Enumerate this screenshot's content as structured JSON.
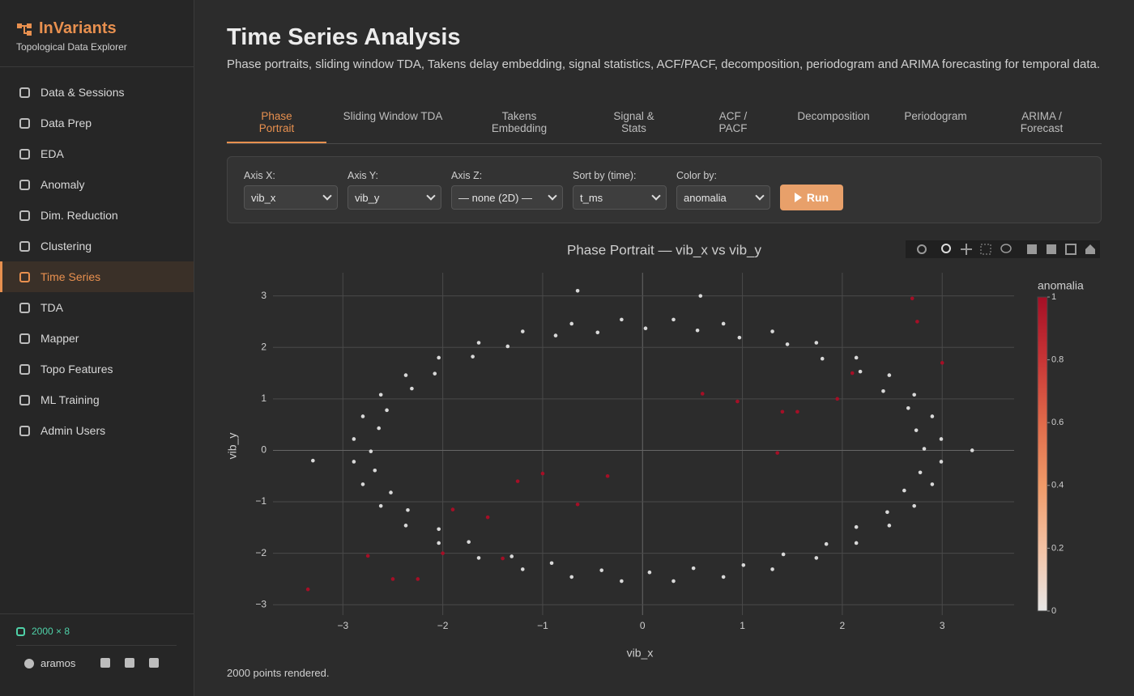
{
  "sidebar": {
    "brand": "InVariants",
    "tagline": "Topological Data Explorer",
    "nav": [
      "Data & Sessions",
      "Data Prep",
      "EDA",
      "Anomaly",
      "Dim. Reduction",
      "Clustering",
      "Time Series",
      "TDA",
      "Mapper",
      "Topo Features",
      "ML Training",
      "Admin Users"
    ],
    "dataset": "2000 × 8",
    "user": "aramos"
  },
  "header": {
    "title": "Time Series Analysis",
    "description": "Phase portraits, sliding window TDA, Takens delay embedding, signal statistics, ACF/PACF, decomposition, periodogram and ARIMA forecasting for temporal data."
  },
  "tabs": [
    "Phase Portrait",
    "Sliding Window TDA",
    "Takens Embedding",
    "Signal & Stats",
    "ACF / PACF",
    "Decomposition",
    "Periodogram",
    "ARIMA / Forecast"
  ],
  "controls": [
    {
      "label": "Axis X:",
      "value": "vib_x"
    },
    {
      "label": "Axis Y:",
      "value": "vib_y"
    },
    {
      "label": "Axis Z:",
      "value": "— none (2D) —"
    },
    {
      "label": "Sort by (time):",
      "value": "t_ms"
    },
    {
      "label": "Color by:",
      "value": "anomalia"
    }
  ],
  "run_button": "Run",
  "chart_data": {
    "type": "scatter",
    "title": "Phase Portrait — vib_x vs vib_y",
    "x_label": "vib_x",
    "y_label": "vib_y",
    "x": [
      2.82,
      2.74,
      2.66,
      2.41,
      2.18,
      1.8,
      1.45,
      0.97,
      0.55,
      0.03,
      -0.45,
      -0.87,
      -1.35,
      -1.7,
      -2.08,
      -2.31,
      -2.56,
      -2.64,
      -2.72,
      -2.68,
      -2.52,
      -2.35,
      -2.04,
      -1.74,
      -1.31,
      -0.91,
      -0.41,
      0.07,
      0.51,
      1.01,
      1.41,
      1.84,
      2.14,
      2.45,
      2.62,
      2.78,
      2.99,
      2.9,
      2.72,
      2.47,
      2.14,
      1.74,
      1.3,
      0.81,
      0.31,
      -0.21,
      -0.71,
      -1.2,
      -1.64,
      -2.04,
      -2.37,
      -2.62,
      -2.8,
      -2.89,
      -2.89,
      -2.8,
      -2.62,
      -2.37,
      -2.04,
      -1.64,
      -1.2,
      -0.71,
      -0.21,
      0.31,
      0.81,
      1.3,
      1.74,
      2.14,
      2.47,
      2.72,
      2.9,
      2.99,
      -3.35,
      -2.75,
      -2.5,
      -2.25,
      -1.9,
      -1.55,
      -1.25,
      -1.0,
      -0.65,
      -0.35,
      0.6,
      0.95,
      1.4,
      1.55,
      1.35,
      2.75,
      3.0,
      2.1,
      1.95,
      2.7,
      -2.0,
      -1.4,
      -3.3,
      3.3,
      -0.65,
      0.58
    ],
    "y": [
      0.03,
      0.39,
      0.82,
      1.15,
      1.53,
      1.78,
      2.06,
      2.19,
      2.33,
      2.37,
      2.29,
      2.23,
      2.02,
      1.82,
      1.49,
      1.2,
      0.78,
      0.43,
      -0.02,
      -0.39,
      -0.82,
      -1.16,
      -1.53,
      -1.78,
      -2.06,
      -2.19,
      -2.33,
      -2.37,
      -2.29,
      -2.23,
      -2.02,
      -1.82,
      -1.49,
      -1.2,
      -0.78,
      -0.43,
      0.22,
      0.66,
      1.08,
      1.46,
      1.8,
      2.09,
      2.31,
      2.46,
      2.54,
      2.54,
      2.46,
      2.31,
      2.09,
      1.8,
      1.46,
      1.08,
      0.66,
      0.22,
      -0.22,
      -0.66,
      -1.08,
      -1.46,
      -1.8,
      -2.09,
      -2.31,
      -2.46,
      -2.54,
      -2.54,
      -2.46,
      -2.31,
      -2.09,
      -1.8,
      -1.46,
      -1.08,
      -0.66,
      -0.22,
      -2.7,
      -2.05,
      -2.5,
      -2.5,
      -1.15,
      -1.3,
      -0.6,
      -0.45,
      -1.05,
      -0.5,
      1.1,
      0.95,
      0.75,
      0.75,
      -0.05,
      2.5,
      1.7,
      1.5,
      1.0,
      2.95,
      -2.0,
      -2.1,
      -0.2,
      0.0,
      3.1,
      3.0
    ],
    "color_values": [
      0,
      0,
      0,
      0,
      0,
      0,
      0,
      0,
      0,
      0,
      0,
      0,
      0,
      0,
      0,
      0,
      0,
      0,
      0,
      0,
      0,
      0,
      0,
      0,
      0,
      0,
      0,
      0,
      0,
      0,
      0,
      0,
      0,
      0,
      0,
      0,
      0,
      0,
      0,
      0,
      0,
      0,
      0,
      0,
      0,
      0,
      0,
      0,
      0,
      0,
      0,
      0,
      0,
      0,
      0,
      0,
      0,
      0,
      0,
      0,
      0,
      0,
      0,
      0,
      0,
      0,
      0,
      0,
      0,
      0,
      0,
      0,
      1,
      1,
      1,
      1,
      1,
      1,
      1,
      1,
      1,
      1,
      1,
      1,
      1,
      1,
      1,
      1,
      1,
      1,
      1,
      1,
      1,
      1,
      0,
      0,
      0,
      0
    ],
    "colorbar": {
      "title": "anomalia",
      "lim": [
        0,
        1
      ],
      "ticks": [
        0,
        0.2,
        0.4,
        0.6,
        0.8,
        1
      ],
      "colorscale": [
        "#e6e6e6",
        "#f3c2a4",
        "#ef9a68",
        "#e06a4a",
        "#c83536",
        "#a50f26"
      ]
    },
    "xlim": [
      -3.7,
      3.72
    ],
    "ylim": [
      -3.2,
      3.45
    ],
    "xticks": [
      {
        "value": -3,
        "label": "−3"
      },
      {
        "value": -2,
        "label": "−2"
      },
      {
        "value": -1,
        "label": "−1"
      },
      0,
      1,
      2,
      3
    ],
    "yticks": [
      {
        "value": -3,
        "label": "−3"
      },
      {
        "value": -2,
        "label": "−2"
      },
      {
        "value": -1,
        "label": "−1"
      },
      0,
      1,
      2,
      3
    ],
    "grid": true,
    "point_color_default": "#d9d9d9"
  },
  "status": "2000 points rendered."
}
